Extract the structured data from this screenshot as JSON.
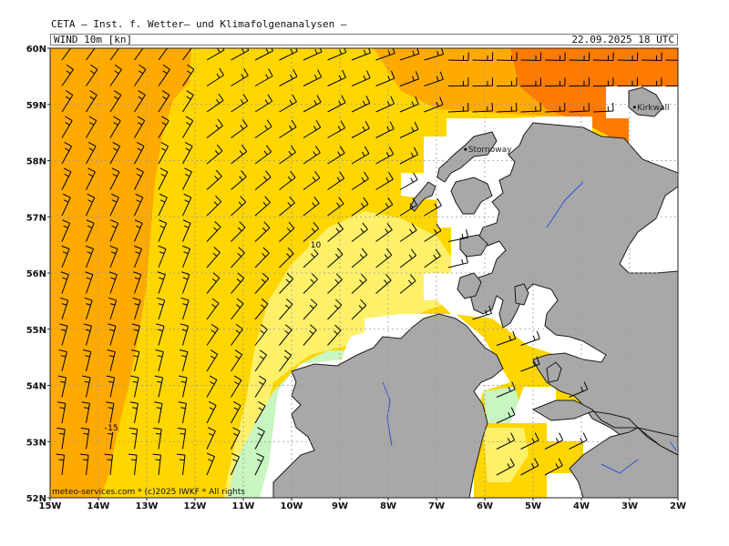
{
  "header": {
    "title": "CETA — Inst. f. Wetter— und Klimafolgenanalysen —",
    "field": "WIND 10m [kn]",
    "datetime": "22.09.2025 18 UTC"
  },
  "map": {
    "lat_labels": [
      "60N",
      "59N",
      "58N",
      "57N",
      "56N",
      "55N",
      "54N",
      "53N",
      "52N"
    ],
    "lon_labels": [
      "15W",
      "14W",
      "13W",
      "12W",
      "11W",
      "10W",
      "9W",
      "8W",
      "7W",
      "6W",
      "5W",
      "4W",
      "3W",
      "2W"
    ],
    "cities": [
      {
        "name": "Stornoway",
        "lon": -6.4,
        "lat": 58.2
      },
      {
        "name": "Kirkwall",
        "lon": -2.9,
        "lat": 58.95
      }
    ],
    "contour_labels": [
      {
        "text": "10",
        "lon": -9.5,
        "lat": 56.45
      },
      {
        "text": "15",
        "lon": -13.7,
        "lat": 53.2
      }
    ],
    "credit": "meteo-services.com * (c)2025 IWKF * All rights",
    "colors": {
      "land": "#a8a8a8",
      "coast": "#1a1a1a",
      "grid": "#9a9a9a",
      "wind_5_10": "#fff06a",
      "wind_10_15": "#ffd600",
      "wind_15_20": "#ffaa00",
      "wind_20_25": "#ff7a00",
      "wind_lt5": "#c8f5c0",
      "river": "#3355cc"
    }
  }
}
